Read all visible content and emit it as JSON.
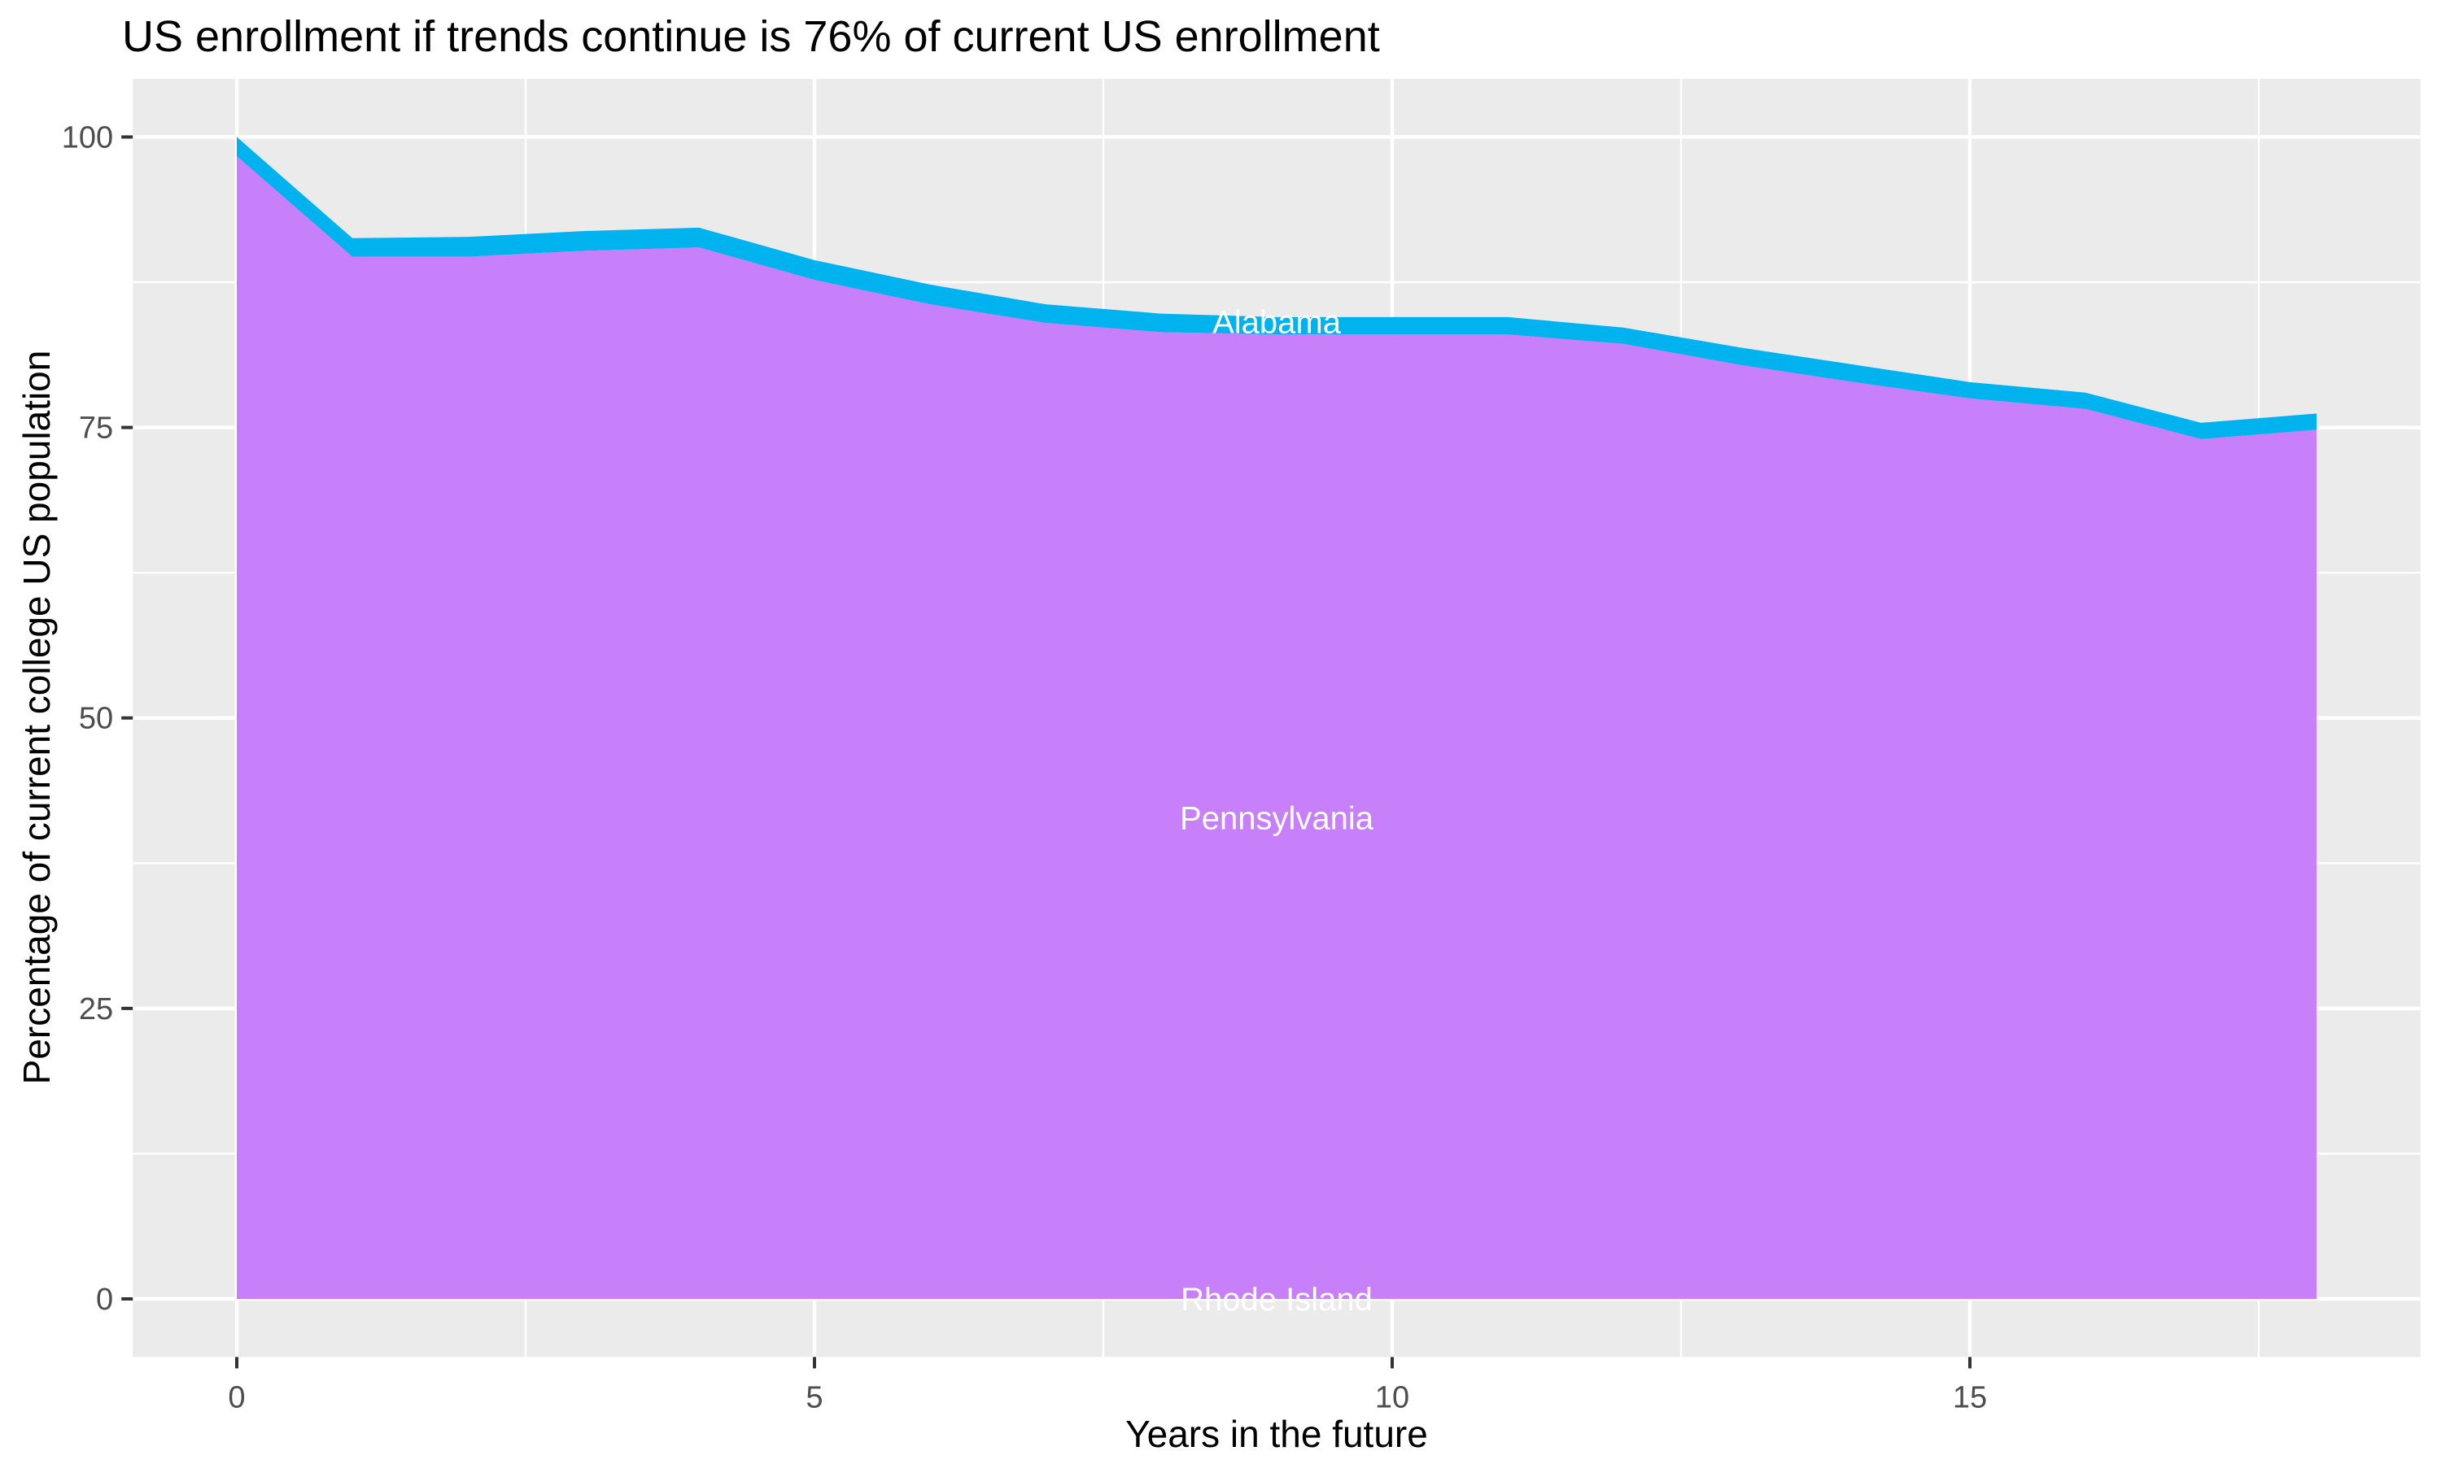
{
  "title": "US enrollment if trends continue is 76% of current US enrollment",
  "colors": {
    "background": "#FFFFFF",
    "panel": "#EBEBEB",
    "grid": "#FFFFFF",
    "tick_mark": "#333333",
    "tick_label": "#4D4D4D",
    "title_text": "#000000",
    "area_label_text": "#FFFFFF",
    "alabama_fill": "#00B2EE",
    "pennsylvania_fill": "#C77FFA"
  },
  "chart_data": {
    "type": "area",
    "stacked": true,
    "title": "US enrollment if trends continue is 76% of current US enrollment",
    "xlabel": "Years in the future",
    "ylabel": "Percentage of current college US population",
    "x": [
      0,
      1,
      2,
      3,
      4,
      5,
      6,
      7,
      8,
      9,
      10,
      11,
      12,
      13,
      14,
      15,
      16,
      17,
      18
    ],
    "series": [
      {
        "name": "Rhode Island",
        "color": null,
        "values": [
          0,
          0,
          0,
          0,
          0,
          0,
          0,
          0,
          0,
          0,
          0,
          0,
          0,
          0,
          0,
          0,
          0,
          0,
          0
        ],
        "note": "band too thin to be visible; label only"
      },
      {
        "name": "Pennsylvania",
        "color": "#C77FFA",
        "values": [
          98.35,
          89.7,
          89.7,
          90.2,
          90.5,
          87.7,
          85.6,
          84.0,
          83.2,
          83.0,
          83.0,
          83.0,
          82.2,
          80.4,
          78.9,
          77.5,
          76.6,
          74.0,
          74.8
        ]
      },
      {
        "name": "Alabama",
        "color": "#00B2EE",
        "values": [
          1.65,
          1.6,
          1.7,
          1.7,
          1.7,
          1.7,
          1.7,
          1.6,
          1.6,
          1.5,
          1.5,
          1.5,
          1.4,
          1.5,
          1.5,
          1.4,
          1.4,
          1.4,
          1.4
        ]
      }
    ],
    "stack_totals": [
      100,
      91.3,
      91.4,
      91.9,
      92.2,
      89.4,
      87.3,
      85.6,
      84.8,
      84.5,
      84.5,
      84.5,
      83.6,
      81.9,
      80.4,
      78.9,
      78.0,
      75.4,
      76.2
    ],
    "series_labels": [
      {
        "text": "Alabama",
        "x": 9,
        "y": 84.1
      },
      {
        "text": "Pennsylvania",
        "x": 9,
        "y": 41.4
      },
      {
        "text": "Rhode Island",
        "x": 9,
        "y": 0
      }
    ],
    "x_ticks": [
      {
        "value": 0,
        "label": "0"
      },
      {
        "value": 5,
        "label": "5"
      },
      {
        "value": 10,
        "label": "10"
      },
      {
        "value": 15,
        "label": "15"
      }
    ],
    "y_ticks": [
      {
        "value": 0,
        "label": "0"
      },
      {
        "value": 25,
        "label": "25"
      },
      {
        "value": 50,
        "label": "50"
      },
      {
        "value": 75,
        "label": "75"
      },
      {
        "value": 100,
        "label": "100"
      }
    ],
    "x_minor_ticks": [
      2.5,
      7.5,
      12.5,
      17.5
    ],
    "y_minor_ticks": [
      12.5,
      37.5,
      62.5,
      87.5
    ],
    "xlim": [
      -0.9,
      18.9
    ],
    "ylim": [
      -5,
      105
    ],
    "grid": "white major and minor gridlines on grey panel",
    "legend": "none"
  }
}
